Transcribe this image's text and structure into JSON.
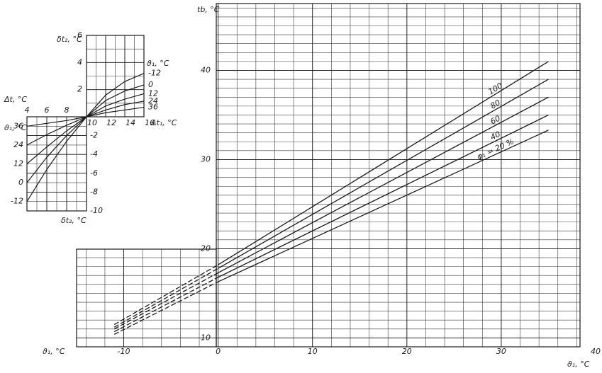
{
  "chart_data": [
    {
      "type": "line",
      "ylabel": "tb, °C",
      "xlabel": "ϑ₁, °C",
      "xlabel_start": "ϑ₁, °C",
      "x": [
        -11,
        0,
        35
      ],
      "segment_styles": [
        "dashed",
        "solid"
      ],
      "series": [
        {
          "name": "100",
          "color": "#1a1a1a",
          "values": [
            11.5,
            18.2,
            41.0
          ]
        },
        {
          "name": "80",
          "color": "#1a1a1a",
          "values": [
            11.2,
            17.8,
            39.0
          ]
        },
        {
          "name": "60",
          "color": "#1a1a1a",
          "values": [
            11.0,
            17.3,
            37.0
          ]
        },
        {
          "name": "40",
          "color": "#1a1a1a",
          "values": [
            10.7,
            16.8,
            35.0
          ]
        },
        {
          "name": "φ₁ = 20 %",
          "color": "#1a1a1a",
          "values": [
            10.4,
            16.3,
            33.3
          ]
        }
      ],
      "xlim": [
        -15,
        39.7
      ],
      "ylim": [
        9,
        47.5
      ],
      "xticks": [
        -10,
        0,
        10,
        20,
        30,
        40
      ],
      "yticks": [
        10,
        20,
        30,
        40
      ],
      "grid": true,
      "xgrid_step": 2,
      "ygrid_step": 1
    },
    {
      "type": "line",
      "ylabel": "δt₂, °C",
      "xlabel": "Δt₁, °C",
      "series_title": "ϑ₁, °C",
      "x": [
        10,
        12,
        14,
        16
      ],
      "series": [
        {
          "name": "-12",
          "color": "#1a1a1a",
          "values": [
            0,
            1.6,
            2.6,
            3.2
          ]
        },
        {
          "name": "0",
          "color": "#1a1a1a",
          "values": [
            0,
            1.2,
            1.9,
            2.35
          ]
        },
        {
          "name": "12",
          "color": "#1a1a1a",
          "values": [
            0,
            0.8,
            1.3,
            1.7
          ]
        },
        {
          "name": "24",
          "color": "#1a1a1a",
          "values": [
            0,
            0.5,
            0.9,
            1.15
          ]
        },
        {
          "name": "36",
          "color": "#1a1a1a",
          "values": [
            0,
            0.3,
            0.5,
            0.7
          ]
        }
      ],
      "xlim": [
        10,
        16
      ],
      "ylim": [
        0,
        6
      ],
      "xticks": [
        10,
        12,
        14,
        16
      ],
      "yticks": [
        2,
        4,
        6
      ],
      "grid": true,
      "xgrid_step": 1,
      "ygrid_step": 1
    },
    {
      "type": "line",
      "ylabel": "δt₂, °C",
      "xlabel": "Δt, °C",
      "series_title": "ϑ₁, °C",
      "x": [
        10,
        8,
        6,
        4
      ],
      "series": [
        {
          "name": "36",
          "color": "#1a1a1a",
          "values": [
            0,
            -0.4,
            -0.7,
            -1.0
          ]
        },
        {
          "name": "24",
          "color": "#1a1a1a",
          "values": [
            0,
            -0.9,
            -1.9,
            -3.0
          ]
        },
        {
          "name": "12",
          "color": "#1a1a1a",
          "values": [
            0,
            -1.5,
            -3.2,
            -5.0
          ]
        },
        {
          "name": "0",
          "color": "#1a1a1a",
          "values": [
            0,
            -2.0,
            -4.3,
            -7.0
          ]
        },
        {
          "name": "-12",
          "color": "#1a1a1a",
          "values": [
            0,
            -2.6,
            -5.6,
            -9.0
          ]
        }
      ],
      "xlim": [
        4,
        10
      ],
      "ylim": [
        -10,
        0
      ],
      "xticks": [
        4,
        6,
        8
      ],
      "yticks": [
        -2,
        -4,
        -6,
        -8,
        -10
      ],
      "grid": true,
      "xgrid_step": 1,
      "ygrid_step": 1
    }
  ]
}
